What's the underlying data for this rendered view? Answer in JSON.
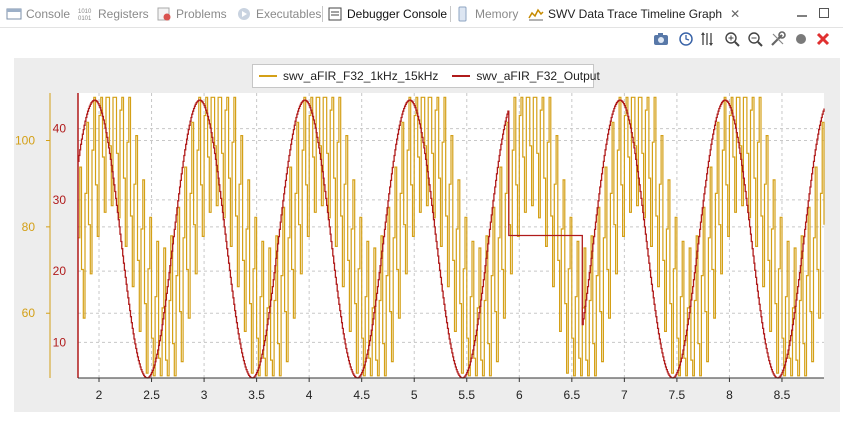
{
  "tabs": [
    {
      "label": "Console",
      "icon": "console-icon",
      "active": false
    },
    {
      "label": "Registers",
      "icon": "registers-icon",
      "active": false
    },
    {
      "label": "Problems",
      "icon": "problems-icon",
      "active": false
    },
    {
      "label": "Executables",
      "icon": "executables-icon",
      "active": false
    },
    {
      "label": "Debugger Console",
      "icon": "debugger-console-icon",
      "active": false
    },
    {
      "label": "Memory",
      "icon": "memory-icon",
      "active": false
    },
    {
      "label": "SWV Data Trace Timeline Graph",
      "icon": "swv-graph-icon",
      "active": true
    }
  ],
  "toolbar": [
    "camera-icon",
    "clock-icon",
    "scale-icon",
    "zoom-in-icon",
    "zoom-out-icon",
    "settings-icon",
    "record-icon",
    "stop-icon"
  ],
  "colors": {
    "input": "#d4a017",
    "output": "#b01b1b",
    "grid": "#c8c8c8"
  },
  "chart_data": {
    "type": "line",
    "title": "",
    "x_ticks": [
      "2",
      "2.5",
      "3",
      "3.5",
      "4",
      "4.5",
      "5",
      "5.5",
      "6",
      "6.5",
      "7",
      "7.5",
      "8",
      "8.5"
    ],
    "xlim": [
      1.8,
      8.9
    ],
    "y_axes": [
      {
        "series": "swv_aFIR_F32_1kHz_15kHz",
        "ticks": [
          "60",
          "80",
          "100"
        ],
        "ylim": [
          45,
          111
        ]
      },
      {
        "series": "swv_aFIR_F32_Output",
        "ticks": [
          "10",
          "20",
          "30",
          "40"
        ],
        "ylim": [
          5,
          45
        ]
      }
    ],
    "series": [
      {
        "name": "swv_aFIR_F32_1kHz_15kHz",
        "color": "#d4a017",
        "description_values": "input: 1kHz sine (amplitude ~25 around 80) plus 15kHz component (amplitude ~21), sampled and step-plotted",
        "params": {
          "offset": 80,
          "a1": 25,
          "f1": 1.0,
          "a2": 21,
          "f2": 15.0,
          "phase1": 0.9,
          "phase2": 0.3
        }
      },
      {
        "name": "swv_aFIR_F32_Output",
        "color": "#b01b1b",
        "description_values": "filtered output: 1kHz sine between ~5 and ~44, with a flat plateau at ~25 between x=5.9 and x=6.6",
        "params": {
          "offset": 24.5,
          "amp": 19.5,
          "freq": 1.0,
          "phase": 1.85,
          "plateau_start": 5.9,
          "plateau_end": 6.6,
          "plateau_value": 25.0
        }
      }
    ],
    "legend": [
      "swv_aFIR_F32_1kHz_15kHz",
      "swv_aFIR_F32_Output"
    ],
    "legend_position": "top",
    "grid": true
  }
}
